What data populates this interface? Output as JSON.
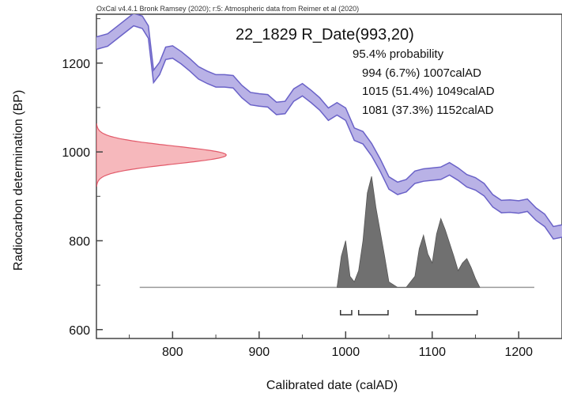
{
  "chart_data": {
    "type": "area",
    "header": "OxCal v4.4.1 Bronk Ramsey (2020); r:5: Atmospheric data from Reimer et al (2020)",
    "title": "22_1829 R_Date(993,20)",
    "probability_label": "95.4% probability",
    "ranges": [
      {
        "label": "994 (6.7%) 1007calAD",
        "start": 994,
        "end": 1007
      },
      {
        "label": "1015 (51.4%) 1049calAD",
        "start": 1015,
        "end": 1049
      },
      {
        "label": "1081 (37.3%) 1152calAD",
        "start": 1081,
        "end": 1152
      }
    ],
    "xlabel": "Calibrated date (calAD)",
    "ylabel": "Radiocarbon determination (BP)",
    "xlim": [
      712,
      1250
    ],
    "ylim": [
      580,
      1310
    ],
    "x_ticks": [
      "800",
      "900",
      "1000",
      "1100",
      "1200"
    ],
    "y_ticks": [
      "600",
      "800",
      "1000",
      "1200"
    ],
    "calibration_curve": {
      "color": "#6a62c8",
      "fill": "#b9b2e6",
      "x": [
        712,
        725,
        740,
        755,
        765,
        772,
        778,
        785,
        792,
        800,
        810,
        820,
        830,
        840,
        850,
        860,
        870,
        880,
        890,
        900,
        910,
        920,
        930,
        940,
        950,
        960,
        970,
        980,
        990,
        1000,
        1010,
        1020,
        1030,
        1040,
        1050,
        1060,
        1070,
        1080,
        1090,
        1100,
        1110,
        1120,
        1130,
        1140,
        1150,
        1160,
        1170,
        1180,
        1190,
        1200,
        1210,
        1220,
        1230,
        1240,
        1250
      ],
      "y": [
        1245,
        1252,
        1275,
        1298,
        1292,
        1270,
        1170,
        1188,
        1222,
        1225,
        1212,
        1196,
        1178,
        1168,
        1160,
        1160,
        1158,
        1136,
        1120,
        1117,
        1115,
        1098,
        1100,
        1128,
        1140,
        1125,
        1108,
        1085,
        1097,
        1085,
        1040,
        1032,
        1005,
        970,
        930,
        918,
        924,
        943,
        948,
        950,
        952,
        962,
        950,
        935,
        928,
        915,
        890,
        877,
        878,
        876,
        880,
        860,
        846,
        818,
        822
      ],
      "band": 14
    },
    "radiocarbon_date": {
      "color": "#e25a6a",
      "fill": "#f6b8bc",
      "mean": 993,
      "sd": 20
    },
    "calibrated_distribution": {
      "color": "#707070",
      "x": [
        990,
        995,
        1000,
        1005,
        1010,
        1015,
        1020,
        1025,
        1030,
        1035,
        1040,
        1045,
        1050,
        1060,
        1070,
        1080,
        1085,
        1090,
        1095,
        1100,
        1105,
        1110,
        1115,
        1120,
        1125,
        1130,
        1135,
        1140,
        1145,
        1150,
        1155
      ],
      "density": [
        0,
        0.28,
        0.42,
        0.1,
        0.05,
        0.15,
        0.42,
        0.85,
        1.0,
        0.72,
        0.5,
        0.28,
        0.05,
        0,
        0,
        0.1,
        0.35,
        0.47,
        0.3,
        0.22,
        0.48,
        0.62,
        0.52,
        0.4,
        0.28,
        0.15,
        0.22,
        0.26,
        0.18,
        0.08,
        0
      ],
      "baseline_range": [
        762,
        1218
      ]
    }
  }
}
